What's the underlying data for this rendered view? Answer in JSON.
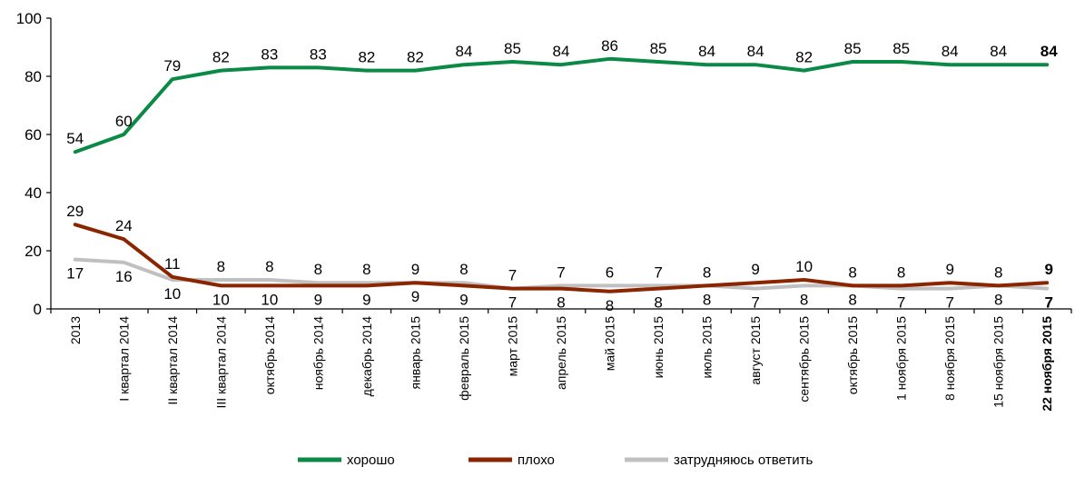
{
  "chart_data": {
    "type": "line",
    "ylim": [
      0,
      100
    ],
    "yticks": [
      0,
      20,
      40,
      60,
      80,
      100
    ],
    "grid": false,
    "legend_position": "bottom",
    "categories": [
      "2013",
      "I квартал 2014",
      "II квартал 2014",
      "III квартал 2014",
      "октябрь 2014",
      "ноябрь 2014",
      "декабрь 2014",
      "январь 2015",
      "февраль 2015",
      "март 2015",
      "апрель 2015",
      "май 2015",
      "июнь 2015",
      "июль 2015",
      "август 2015",
      "сентябрь 2015",
      "октябрь 2015",
      "1 ноября 2015",
      "8 ноября 2015",
      "15 ноября 2015",
      "22 ноября 2015"
    ],
    "series": [
      {
        "name": "хорошо",
        "color": "#0a8a45",
        "values": [
          54,
          60,
          79,
          82,
          83,
          83,
          82,
          82,
          84,
          85,
          84,
          86,
          85,
          84,
          84,
          82,
          85,
          85,
          84,
          84,
          84
        ]
      },
      {
        "name": "плохо",
        "color": "#8b2500",
        "values": [
          29,
          24,
          11,
          8,
          8,
          8,
          8,
          9,
          8,
          7,
          7,
          6,
          7,
          8,
          9,
          10,
          8,
          8,
          9,
          8,
          9
        ]
      },
      {
        "name": "затрудняюсь ответить",
        "color": "#c0c0c0",
        "values": [
          17,
          16,
          10,
          10,
          10,
          9,
          9,
          9,
          9,
          7,
          8,
          8,
          8,
          8,
          7,
          8,
          8,
          7,
          7,
          8,
          7
        ]
      }
    ]
  }
}
